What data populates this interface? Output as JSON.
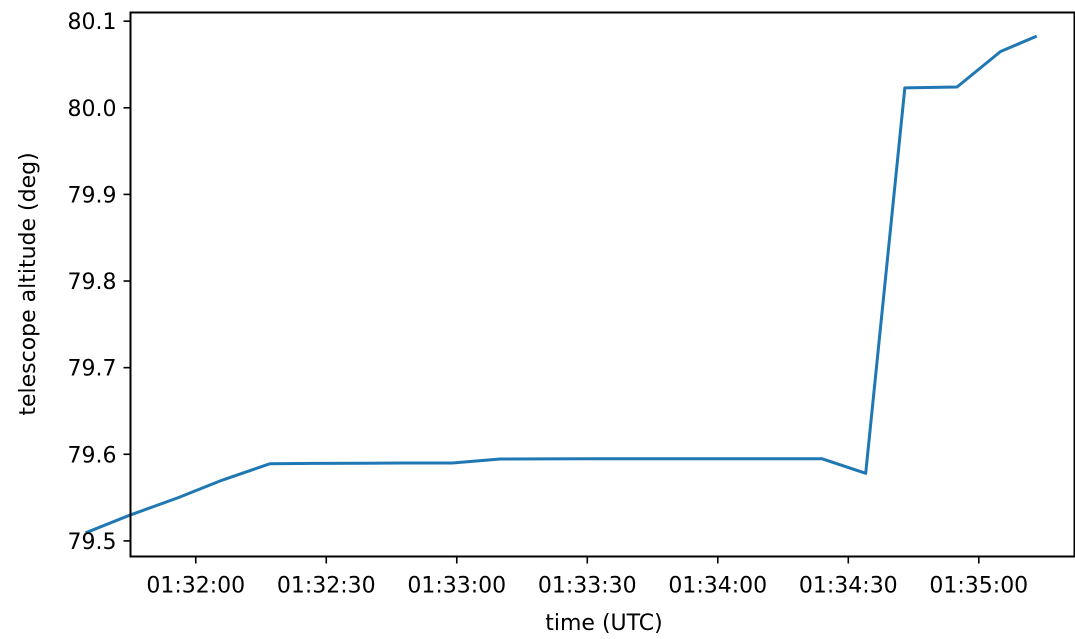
{
  "chart_data": {
    "type": "line",
    "title": "",
    "xlabel": "time (UTC)",
    "ylabel": "telescope altitude (deg)",
    "grid": false,
    "legend": "none",
    "x_ticks": [
      "01:32:00",
      "01:32:30",
      "01:33:00",
      "01:33:30",
      "01:34:00",
      "01:34:30",
      "01:35:00"
    ],
    "y_ticks": [
      "79.5",
      "79.6",
      "79.7",
      "79.8",
      "79.9",
      "80.0",
      "80.1"
    ],
    "xlim": [
      "01:31:45",
      "01:35:22"
    ],
    "ylim": [
      79.482,
      80.11
    ],
    "series": [
      {
        "color": "#1f77b4",
        "points": [
          {
            "x": "01:31:35",
            "y": 79.51
          },
          {
            "x": "01:31:45",
            "y": 79.53
          },
          {
            "x": "01:31:56",
            "y": 79.55
          },
          {
            "x": "01:32:06",
            "y": 79.57
          },
          {
            "x": "01:32:17",
            "y": 79.589
          },
          {
            "x": "01:32:27",
            "y": 79.5895
          },
          {
            "x": "01:32:38",
            "y": 79.5897
          },
          {
            "x": "01:32:48",
            "y": 79.59
          },
          {
            "x": "01:32:59",
            "y": 79.59
          },
          {
            "x": "01:33:10",
            "y": 79.5945
          },
          {
            "x": "01:33:20",
            "y": 79.5947
          },
          {
            "x": "01:33:31",
            "y": 79.5948
          },
          {
            "x": "01:33:42",
            "y": 79.5948
          },
          {
            "x": "01:33:52",
            "y": 79.5948
          },
          {
            "x": "01:34:03",
            "y": 79.5948
          },
          {
            "x": "01:34:13",
            "y": 79.5948
          },
          {
            "x": "01:34:24",
            "y": 79.5948
          },
          {
            "x": "01:34:34",
            "y": 79.578
          },
          {
            "x": "01:34:43",
            "y": 80.023
          },
          {
            "x": "01:34:55",
            "y": 80.024
          },
          {
            "x": "01:35:05",
            "y": 80.065
          },
          {
            "x": "01:35:13",
            "y": 80.082
          }
        ]
      }
    ]
  }
}
